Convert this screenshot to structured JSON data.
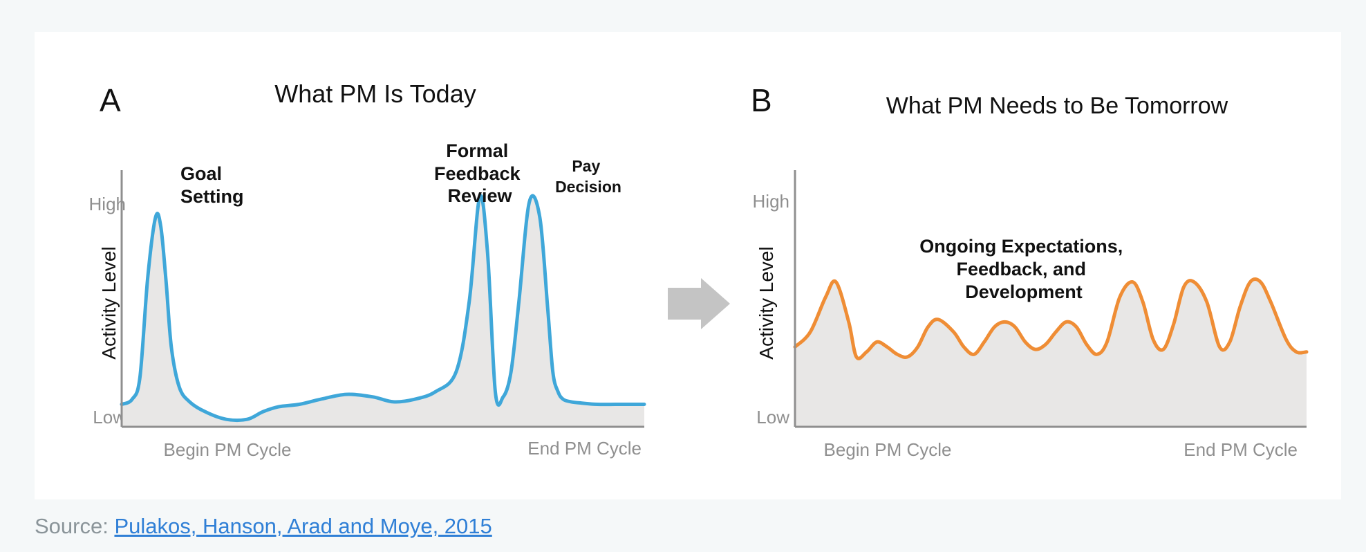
{
  "colors": {
    "page_bg": "#f5f8f9",
    "panel_bg": "#ffffff",
    "area_fill": "#e8e7e6",
    "axis": "#8f8f8f",
    "today_line": "#3fa7d9",
    "tomorrow_line": "#ef8d35",
    "arrow": "#c4c4c4",
    "link": "#2f7fd6"
  },
  "arrow_icon": "right-arrow-icon",
  "chart_data": [
    {
      "type": "area",
      "panel_letter": "A",
      "title": "What PM Is Today",
      "ylabel": "Activity Level",
      "y_ticks": [
        "High",
        "Low"
      ],
      "x_ticks": [
        "Begin PM Cycle",
        "End PM Cycle"
      ],
      "xlim": [
        0,
        100
      ],
      "ylim": [
        0,
        100
      ],
      "grid": false,
      "line_color": "#3fa7d9",
      "annotations": [
        {
          "text": [
            "Goal",
            "Setting"
          ],
          "anchor": "start"
        },
        {
          "text": [
            "Formal",
            "Feedback",
            "Review"
          ],
          "anchor": "middle"
        },
        {
          "text": [
            "Pay",
            "Decision"
          ],
          "anchor": "middle"
        }
      ],
      "x": [
        0,
        2,
        3.5,
        5,
        6.5,
        7.5,
        8.5,
        9.5,
        11,
        13,
        16,
        20,
        24,
        27,
        30,
        34,
        38,
        43,
        48,
        52,
        56,
        60,
        64,
        66.5,
        68.5,
        70,
        71.5,
        73,
        74.5,
        76,
        78,
        80,
        81.5,
        82.5,
        83.5,
        84.5,
        86,
        88,
        91,
        95,
        100
      ],
      "y": [
        9,
        11,
        20,
        60,
        84,
        80,
        58,
        32,
        16,
        10,
        6,
        3,
        3,
        6,
        8,
        9,
        11,
        13,
        12,
        10,
        11,
        14,
        22,
        50,
        92,
        70,
        14,
        12,
        22,
        50,
        90,
        84,
        48,
        22,
        14,
        11,
        10,
        9.5,
        9,
        9,
        9
      ],
      "data_labels": []
    },
    {
      "type": "area",
      "panel_letter": "B",
      "title": "What PM Needs to Be Tomorrow",
      "ylabel": "Activity Level",
      "y_ticks": [
        "High",
        "Low"
      ],
      "x_ticks": [
        "Begin PM Cycle",
        "End PM Cycle"
      ],
      "xlim": [
        0,
        100
      ],
      "ylim": [
        0,
        100
      ],
      "grid": false,
      "line_color": "#ef8d35",
      "annotations": [
        {
          "text": [
            "Ongoing Expectations,",
            "Feedback, and",
            "Development"
          ],
          "anchor": "middle"
        }
      ],
      "x": [
        0,
        3,
        6,
        8,
        10.5,
        12,
        14,
        16,
        18,
        20,
        22,
        24,
        26,
        28,
        31,
        33,
        35,
        37,
        39,
        41,
        43,
        45,
        47,
        49,
        51,
        53,
        55,
        57,
        59,
        61,
        63.5,
        66,
        68,
        70,
        72,
        74,
        76,
        78,
        80.5,
        83,
        85,
        87,
        89,
        91,
        93,
        96,
        98,
        100
      ],
      "y": [
        32,
        38,
        52,
        58,
        42,
        28,
        30,
        34,
        32,
        29,
        28,
        32,
        40,
        43,
        38,
        32,
        29,
        34,
        40,
        42,
        40,
        34,
        31,
        33,
        38,
        42,
        40,
        33,
        29,
        34,
        52,
        58,
        50,
        35,
        31,
        41,
        56,
        58,
        50,
        32,
        34,
        48,
        58,
        58,
        50,
        35,
        30,
        30
      ],
      "data_labels": []
    }
  ],
  "source": {
    "label": "Source: ",
    "link_text": "Pulakos, Hanson, Arad and Moye, 2015"
  }
}
